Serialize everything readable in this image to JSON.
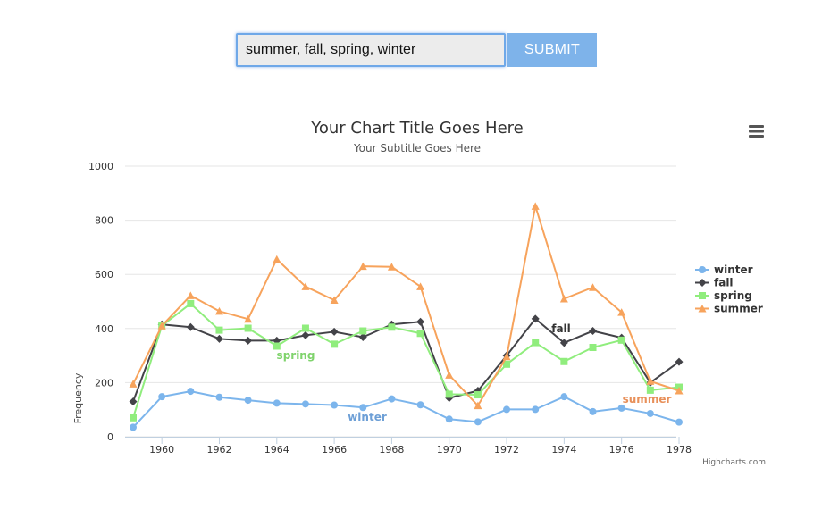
{
  "form": {
    "query_value": "summer, fall, spring, winter",
    "submit_label": "SUBMIT"
  },
  "menu": {
    "icon": "hamburger-menu-icon"
  },
  "credits": "Highcharts.com",
  "chart_data": {
    "type": "line",
    "title": "Your Chart Title Goes Here",
    "subtitle": "Your Subtitle Goes Here",
    "ylabel": "Frequency",
    "xlabel": "",
    "xlim": [
      1959,
      1978
    ],
    "ylim": [
      0,
      1000
    ],
    "x_ticks": [
      1960,
      1962,
      1964,
      1966,
      1968,
      1970,
      1972,
      1974,
      1976,
      1978
    ],
    "y_ticks": [
      0,
      200,
      400,
      600,
      800,
      1000
    ],
    "grid": true,
    "legend_position": "right",
    "x": [
      1959,
      1960,
      1961,
      1962,
      1963,
      1964,
      1965,
      1966,
      1967,
      1968,
      1969,
      1970,
      1971,
      1972,
      1973,
      1974,
      1975,
      1976,
      1977,
      1978
    ],
    "series": [
      {
        "name": "winter",
        "color": "#7cb5ec",
        "marker": "circle",
        "values": [
          35,
          148,
          168,
          146,
          135,
          124,
          121,
          117,
          108,
          140,
          118,
          65,
          55,
          101,
          101,
          148,
          93,
          106,
          86,
          54
        ],
        "inline_label": "winter"
      },
      {
        "name": "fall",
        "color": "#434348",
        "marker": "diamond",
        "values": [
          130,
          415,
          405,
          362,
          355,
          355,
          375,
          388,
          368,
          415,
          425,
          143,
          170,
          300,
          436,
          347,
          391,
          366,
          200,
          277
        ],
        "inline_label": "fall"
      },
      {
        "name": "spring",
        "color": "#90ed7d",
        "marker": "square",
        "values": [
          70,
          410,
          492,
          394,
          401,
          335,
          401,
          342,
          391,
          405,
          382,
          157,
          155,
          268,
          348,
          278,
          330,
          357,
          172,
          183
        ],
        "inline_label": "spring"
      },
      {
        "name": "summer",
        "color": "#f7a35c",
        "marker": "triangle",
        "values": [
          195,
          410,
          522,
          464,
          435,
          656,
          555,
          505,
          630,
          628,
          555,
          228,
          115,
          296,
          852,
          510,
          552,
          460,
          205,
          170
        ],
        "inline_label": "summer"
      }
    ],
    "inline_label_colors": {
      "winter": "#6d9fd6",
      "fall": "#333333",
      "spring": "#7fd36c",
      "summer": "#e8905a"
    }
  }
}
